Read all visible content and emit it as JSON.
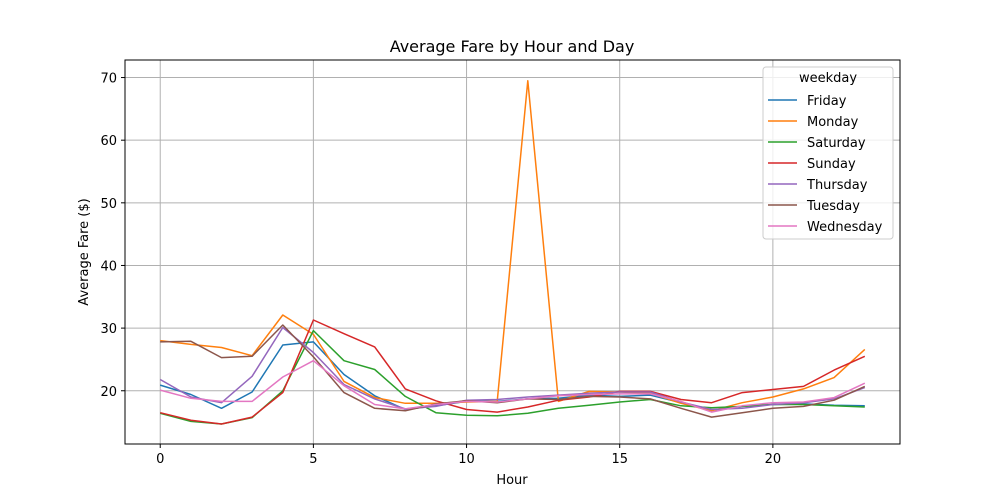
{
  "chart_data": {
    "type": "line",
    "title": "Average Fare by Hour and Day",
    "xlabel": "Hour",
    "ylabel": "Average Fare ($)",
    "xlim": [
      -1.15,
      24.15
    ],
    "ylim": [
      11.5,
      72.8
    ],
    "xticks": [
      0,
      5,
      10,
      15,
      20
    ],
    "yticks": [
      20,
      30,
      40,
      50,
      60,
      70
    ],
    "grid": true,
    "legend": {
      "title": "weekday",
      "placement": "top-right"
    },
    "x": [
      0,
      1,
      2,
      3,
      4,
      5,
      6,
      7,
      8,
      9,
      10,
      11,
      12,
      13,
      14,
      15,
      16,
      17,
      18,
      19,
      20,
      21,
      22,
      23
    ],
    "series": [
      {
        "name": "Friday",
        "color": "#1f77b4",
        "values": [
          20.9,
          19.4,
          17.2,
          19.8,
          27.3,
          27.8,
          22.6,
          19.2,
          17.0,
          17.6,
          18.3,
          18.3,
          18.7,
          18.8,
          19.3,
          19.1,
          19.3,
          18.1,
          16.9,
          17.5,
          17.8,
          17.9,
          17.7,
          17.6
        ]
      },
      {
        "name": "Monday",
        "color": "#ff7f0e",
        "values": [
          28.0,
          27.4,
          26.9,
          25.6,
          32.1,
          29.0,
          21.5,
          18.9,
          18.0,
          18.0,
          18.2,
          18.3,
          69.5,
          18.3,
          19.9,
          19.8,
          19.6,
          18.0,
          16.8,
          18.1,
          19.0,
          20.3,
          22.1,
          26.6
        ]
      },
      {
        "name": "Saturday",
        "color": "#2ca02c",
        "values": [
          16.4,
          15.1,
          14.7,
          15.7,
          20.0,
          29.6,
          24.8,
          23.4,
          19.1,
          16.5,
          16.1,
          16.0,
          16.4,
          17.2,
          17.7,
          18.2,
          18.6,
          17.6,
          17.3,
          17.5,
          17.8,
          17.8,
          17.6,
          17.4
        ]
      },
      {
        "name": "Sunday",
        "color": "#d62728",
        "values": [
          16.5,
          15.3,
          14.7,
          15.8,
          19.7,
          31.3,
          29.1,
          27.0,
          20.3,
          18.4,
          17.0,
          16.6,
          17.4,
          18.5,
          19.0,
          19.9,
          19.9,
          18.6,
          18.1,
          19.7,
          20.2,
          20.7,
          23.3,
          25.5
        ]
      },
      {
        "name": "Thursday",
        "color": "#9467bd",
        "values": [
          21.8,
          19.0,
          18.1,
          22.3,
          30.1,
          26.1,
          21.0,
          18.7,
          17.1,
          17.5,
          18.5,
          18.6,
          19.0,
          19.3,
          19.6,
          19.8,
          19.8,
          18.2,
          17.0,
          17.2,
          17.8,
          18.1,
          18.7,
          20.5
        ]
      },
      {
        "name": "Tuesday",
        "color": "#8c564b",
        "values": [
          27.8,
          27.9,
          25.3,
          25.5,
          30.5,
          25.4,
          19.7,
          17.2,
          16.8,
          17.9,
          18.4,
          18.1,
          18.7,
          18.6,
          19.1,
          19.0,
          18.7,
          17.2,
          15.8,
          16.5,
          17.2,
          17.5,
          18.5,
          20.7
        ]
      },
      {
        "name": "Wednesday",
        "color": "#e377c2",
        "values": [
          20.1,
          18.8,
          18.3,
          18.3,
          22.2,
          24.8,
          20.8,
          17.8,
          17.1,
          17.8,
          18.3,
          18.2,
          18.7,
          19.2,
          19.4,
          19.5,
          19.5,
          18.3,
          16.6,
          17.6,
          18.1,
          18.2,
          18.9,
          21.2
        ]
      }
    ]
  }
}
